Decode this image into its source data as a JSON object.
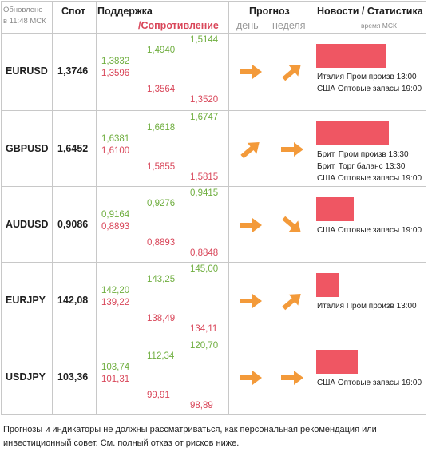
{
  "header": {
    "updated": "Обновлено",
    "updated_time": "в 11:48 МСК",
    "spot": "Спот",
    "support": "Поддержка",
    "resistance": "/Сопротивление",
    "forecast": "Прогноз",
    "day": "день",
    "week": "неделя",
    "news": "Новости / Статистика",
    "news_time": "время МСК"
  },
  "rows": [
    {
      "pair": "EURUSD",
      "spot": "1,3746",
      "s1a": "1,3832",
      "s1b": "1,3596",
      "s2a": "1,4940",
      "s2b": "1,3564",
      "s3a": "1,5144",
      "s3b": "1,3520",
      "day_arrow": "arrow-right-icon",
      "week_arrow": "arrow-up-right-icon",
      "news": [
        "Италия Пром произв 13:00",
        "США Оптовые запасы 19:00"
      ],
      "bar_level": 0.68
    },
    {
      "pair": "GBPUSD",
      "spot": "1,6452",
      "s1a": "1,6381",
      "s1b": "1,6100",
      "s2a": "1,6618",
      "s2b": "1,5855",
      "s3a": "1,6747",
      "s3b": "1,5815",
      "day_arrow": "arrow-up-right-icon",
      "week_arrow": "arrow-right-icon",
      "news": [
        "Брит. Пром произв 13:30",
        "Брит. Торг баланс 13:30",
        "США Оптовые запасы 19:00"
      ],
      "bar_level": 0.7
    },
    {
      "pair": "AUDUSD",
      "spot": "0,9086",
      "s1a": "0,9164",
      "s1b": "0,8893",
      "s2a": "0,9276",
      "s2b": "0,8893",
      "s3a": "0,9415",
      "s3b": "0,8848",
      "day_arrow": "arrow-right-icon",
      "week_arrow": "arrow-down-right-icon",
      "news": [
        "США Оптовые запасы 19:00"
      ],
      "bar_level": 0.36
    },
    {
      "pair": "EURJPY",
      "spot": "142,08",
      "s1a": "142,20",
      "s1b": "139,22",
      "s2a": "143,25",
      "s2b": "138,49",
      "s3a": "145,00",
      "s3b": "134,11",
      "day_arrow": "arrow-right-icon",
      "week_arrow": "arrow-up-right-icon",
      "news": [
        "Италия Пром произв 13:00"
      ],
      "bar_level": 0.22
    },
    {
      "pair": "USDJPY",
      "spot": "103,36",
      "s1a": "103,74",
      "s1b": "101,31",
      "s2a": "112,34",
      "s2b": "99,91",
      "s3a": "120,70",
      "s3b": "98,89",
      "day_arrow": "arrow-right-icon",
      "week_arrow": "arrow-right-icon",
      "news": [
        "США Оптовые запасы 19:00"
      ],
      "bar_level": 0.4
    }
  ],
  "disclaimer": "Прогнозы и индикаторы не должны рассматриваться, как персональная рекомендация или инвестиционный совет. См. полный отказ от рисков ниже.",
  "colors": {
    "support": "#6fae3f",
    "resistance": "#d9475a",
    "arrow": "#f39a3a",
    "bar": "#ef5663"
  }
}
